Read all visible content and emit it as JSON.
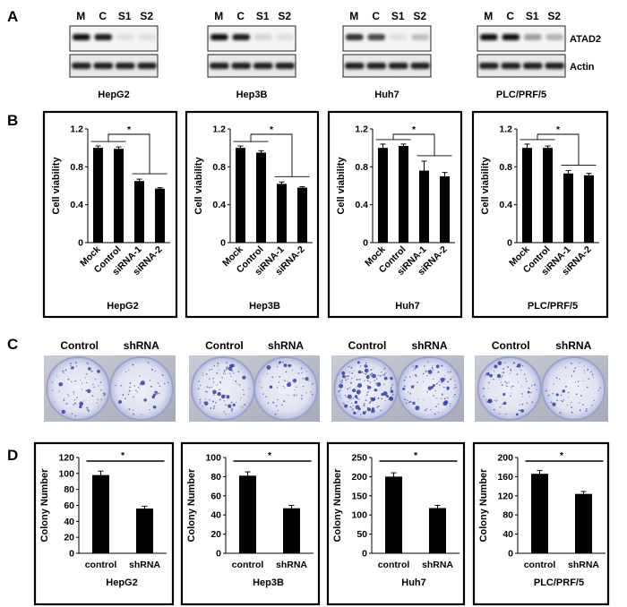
{
  "panels": {
    "A": "A",
    "B": "B",
    "C": "C",
    "D": "D"
  },
  "blots": {
    "lanes": [
      "M",
      "C",
      "S1",
      "S2"
    ],
    "proteins": [
      "ATAD2",
      "Actin"
    ],
    "atad2_level": [
      [
        1.0,
        0.95,
        0.05,
        0.05
      ],
      [
        1.0,
        0.95,
        0.1,
        0.05
      ],
      [
        0.85,
        0.75,
        0.05,
        0.2
      ],
      [
        1.0,
        1.0,
        0.35,
        0.25
      ]
    ]
  },
  "cell_lines": [
    "HepG2",
    "Hep3B",
    "Huh7",
    "PLC/PRF/5"
  ],
  "colony_density": [
    0.35,
    0.5,
    1.0,
    0.45
  ],
  "colony_labels": [
    "Control",
    "shRNA"
  ],
  "sig_mark": "*",
  "chart_data": [
    {
      "type": "bar",
      "panel": "B",
      "title": "HepG2",
      "xlabel": "",
      "ylabel": "Cell viability",
      "ylim": [
        0,
        1.2
      ],
      "ticks": [
        "0",
        "0.4",
        "0.8",
        "1.2"
      ],
      "categories": [
        "Mock",
        "Control",
        "siRNA-1",
        "siRNA-2"
      ],
      "values": [
        1.0,
        0.99,
        0.65,
        0.57
      ],
      "errors": [
        0.02,
        0.02,
        0.02,
        0.01
      ]
    },
    {
      "type": "bar",
      "panel": "B",
      "title": "Hep3B",
      "xlabel": "",
      "ylabel": "Cell viability",
      "ylim": [
        0,
        1.2
      ],
      "ticks": [
        "0",
        "0.4",
        "0.8",
        "1.2"
      ],
      "categories": [
        "Mock",
        "Control",
        "siRNA-1",
        "siRNA-2"
      ],
      "values": [
        1.0,
        0.95,
        0.62,
        0.58
      ],
      "errors": [
        0.02,
        0.02,
        0.02,
        0.01
      ]
    },
    {
      "type": "bar",
      "panel": "B",
      "title": "Huh7",
      "xlabel": "",
      "ylabel": "Cell viability",
      "ylim": [
        0,
        1.2
      ],
      "ticks": [
        "0",
        "0.4",
        "0.8",
        "1.2"
      ],
      "categories": [
        "Mock",
        "Control",
        "siRNA-1",
        "siRNA-2"
      ],
      "values": [
        1.0,
        1.02,
        0.76,
        0.7
      ],
      "errors": [
        0.04,
        0.02,
        0.1,
        0.04
      ]
    },
    {
      "type": "bar",
      "panel": "B",
      "title": "PLC/PRF/5",
      "xlabel": "",
      "ylabel": "Cell viability",
      "ylim": [
        0,
        1.2
      ],
      "ticks": [
        "0",
        "0.4",
        "0.8",
        "1.2"
      ],
      "categories": [
        "Mock",
        "Control",
        "siRNA-1",
        "siRNA-2"
      ],
      "values": [
        1.0,
        1.0,
        0.73,
        0.71
      ],
      "errors": [
        0.04,
        0.02,
        0.03,
        0.02
      ]
    },
    {
      "type": "bar",
      "panel": "D",
      "title": "HepG2",
      "xlabel": "",
      "ylabel": "Colony Number",
      "ylim": [
        0,
        120
      ],
      "ticks": [
        "0",
        "20",
        "40",
        "60",
        "80",
        "100",
        "120"
      ],
      "categories": [
        "control",
        "shRNA"
      ],
      "values": [
        98,
        56
      ],
      "errors": [
        5,
        3
      ]
    },
    {
      "type": "bar",
      "panel": "D",
      "title": "Hep3B",
      "xlabel": "",
      "ylabel": "Colony Number",
      "ylim": [
        0,
        100
      ],
      "ticks": [
        "0",
        "20",
        "40",
        "60",
        "80",
        "100"
      ],
      "categories": [
        "control",
        "shRNA"
      ],
      "values": [
        81,
        47
      ],
      "errors": [
        4,
        3
      ]
    },
    {
      "type": "bar",
      "panel": "D",
      "title": "Huh7",
      "xlabel": "",
      "ylabel": "Colony Number",
      "ylim": [
        0,
        250
      ],
      "ticks": [
        "0",
        "50",
        "100",
        "150",
        "200",
        "250"
      ],
      "categories": [
        "control",
        "shRNA"
      ],
      "values": [
        200,
        118
      ],
      "errors": [
        10,
        7
      ]
    },
    {
      "type": "bar",
      "panel": "D",
      "title": "PLC/PRF/5",
      "xlabel": "",
      "ylabel": "Colony Number",
      "ylim": [
        0,
        200
      ],
      "ticks": [
        "0",
        "40",
        "80",
        "120",
        "160",
        "200"
      ],
      "categories": [
        "control",
        "shRNA"
      ],
      "values": [
        166,
        124
      ],
      "errors": [
        7,
        5
      ]
    }
  ]
}
